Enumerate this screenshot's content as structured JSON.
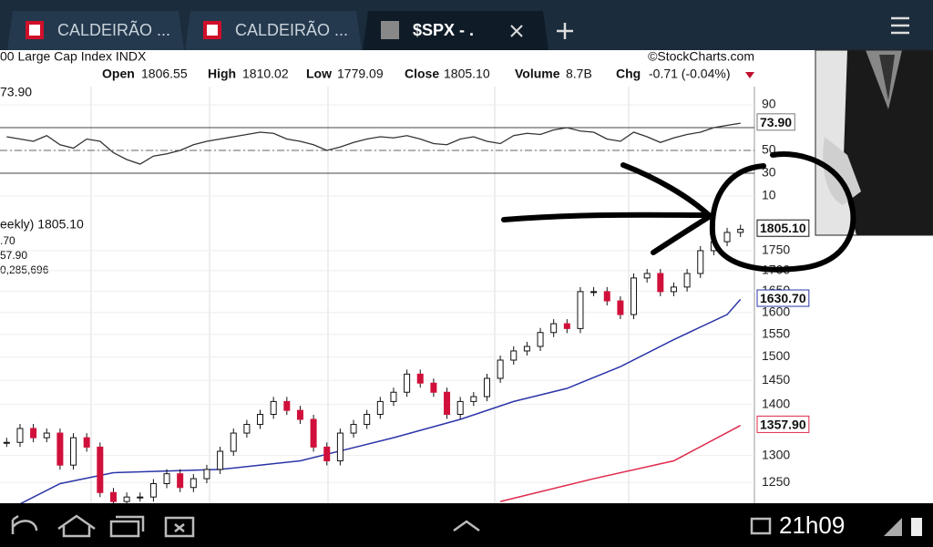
{
  "tabs": [
    {
      "title": "CALDEIRÃO ..."
    },
    {
      "title": "CALDEIRÃO ..."
    },
    {
      "title": "$SPX - ."
    }
  ],
  "chart_header": {
    "title": "00 Large Cap Index  INDX",
    "source": "©StockCharts.com",
    "quote": [
      {
        "label": "Open",
        "value": "1806.55"
      },
      {
        "label": "High",
        "value": "1810.02"
      },
      {
        "label": "Low",
        "value": "1779.09"
      },
      {
        "label": "Close",
        "value": "1805.10"
      },
      {
        "label": "Volume",
        "value": "8.7B"
      },
      {
        "label": "Chg",
        "value": "-0.71 (-0.04%)"
      }
    ],
    "rsi_label": "73.90",
    "price_legend": [
      "eekly) 1805.10",
      ".70",
      "57.90",
      "0,285,696"
    ]
  },
  "chart_data": [
    {
      "type": "line",
      "color": "#333333",
      "ylim": [
        0,
        100
      ],
      "yticks": [
        10,
        30,
        50,
        90
      ],
      "bands": [
        30,
        70
      ],
      "midline": 50,
      "values": [
        62,
        60,
        58,
        63,
        55,
        52,
        60,
        58,
        48,
        42,
        38,
        45,
        47,
        50,
        55,
        58,
        60,
        62,
        64,
        66,
        65,
        60,
        58,
        55,
        50,
        53,
        57,
        60,
        62,
        61,
        63,
        60,
        56,
        55,
        60,
        62,
        58,
        56,
        63,
        65,
        64,
        68,
        70,
        67,
        66,
        60,
        58,
        66,
        62,
        57,
        61,
        64,
        66,
        70,
        72,
        73.9
      ],
      "value_labels": [
        null,
        null,
        null,
        null,
        null,
        null,
        null,
        null,
        null,
        null,
        null,
        null,
        null,
        null,
        null,
        null,
        null,
        null,
        null,
        null,
        null,
        null,
        null,
        null,
        null,
        null,
        null,
        null,
        null,
        null,
        null,
        null,
        null,
        null,
        null,
        null,
        null,
        null,
        null,
        null,
        null,
        null,
        null,
        null,
        null,
        null,
        null,
        null,
        null,
        null,
        null,
        null,
        null,
        null,
        null,
        "73.90"
      ]
    },
    {
      "type": "candlestick",
      "log_scale": true,
      "ylim": [
        1213,
        1845
      ],
      "yticks": [
        1250,
        1300,
        1400,
        1450,
        1500,
        1550,
        1600,
        1650,
        1700,
        1750
      ],
      "up_color": "#ffffff",
      "down_color": "#d0103a",
      "values": [
        1325,
        1352,
        1334,
        1343,
        1282,
        1334,
        1316,
        1232,
        1216,
        1224,
        1224,
        1248,
        1266,
        1241,
        1257,
        1274,
        1308,
        1343,
        1360,
        1380,
        1406,
        1388,
        1370,
        1316,
        1290,
        1343,
        1360,
        1380,
        1406,
        1425,
        1463,
        1444,
        1425,
        1380,
        1406,
        1416,
        1454,
        1493,
        1513,
        1523,
        1554,
        1574,
        1563,
        1649,
        1649,
        1627,
        1595,
        1682,
        1693,
        1649,
        1660,
        1693,
        1750,
        1773,
        1797,
        1805.1
      ],
      "value_labels": [
        null,
        null,
        null,
        null,
        null,
        null,
        null,
        null,
        null,
        null,
        null,
        null,
        null,
        null,
        null,
        null,
        null,
        null,
        null,
        null,
        null,
        null,
        null,
        null,
        null,
        null,
        null,
        null,
        null,
        null,
        null,
        null,
        null,
        null,
        null,
        null,
        null,
        null,
        null,
        null,
        null,
        null,
        null,
        null,
        null,
        null,
        null,
        null,
        null,
        null,
        null,
        null,
        null,
        null,
        null,
        "1805.10"
      ],
      "overlays": [
        {
          "color": "#2b35a8",
          "x": [
            0,
            4,
            8,
            16,
            22,
            29,
            34,
            38,
            42,
            46,
            50,
            54,
            55
          ],
          "values": [
            1200,
            1248,
            1268,
            1274,
            1290,
            1334,
            1370,
            1406,
            1433,
            1479,
            1538,
            1595,
            1630.7
          ],
          "value_labels": [
            null,
            null,
            null,
            null,
            null,
            null,
            null,
            null,
            null,
            null,
            null,
            null,
            "1630.70"
          ]
        },
        {
          "color": "#e0284a",
          "x": [
            37,
            44,
            50,
            55
          ],
          "values": [
            1216,
            1257,
            1290,
            1357.9
          ],
          "value_labels": [
            null,
            null,
            null,
            "1357.90"
          ]
        }
      ]
    }
  ],
  "status_bar": {
    "time": "21h09"
  }
}
